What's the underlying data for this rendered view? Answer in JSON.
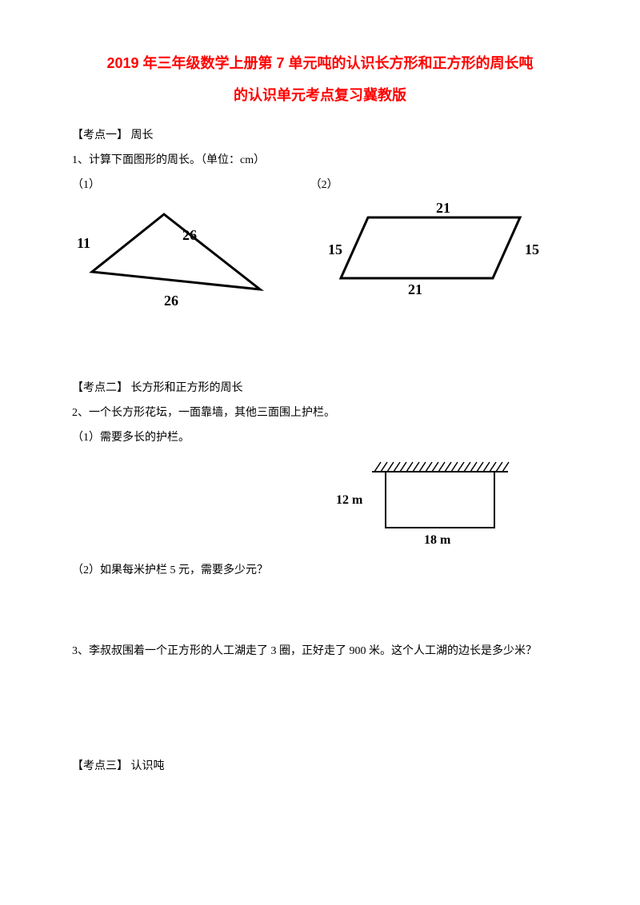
{
  "title_line1": "2019 年三年级数学上册第 7 单元吨的认识长方形和正方形的周长吨",
  "title_line2": "的认识单元考点复习冀教版",
  "kp1_heading": "【考点一】 周长",
  "q1": "1、计算下面图形的周长。（单位：cm）",
  "q1_sub1": "（1）",
  "q1_sub2": "（2）",
  "triangle": {
    "left_label": "11",
    "top_label": "26",
    "bottom_label": "26",
    "stroke": "#000000",
    "stroke_width": 3
  },
  "parallelogram": {
    "top_label": "21",
    "left_label": "15",
    "right_label": "15",
    "bottom_label": "21",
    "stroke": "#000000",
    "stroke_width": 3
  },
  "kp2_heading": "【考点二】 长方形和正方形的周长",
  "q2": "2、一个长方形花坛，一面靠墙，其他三面围上护栏。",
  "q2_sub1": "（1）需要多长的护栏。",
  "q2_sub2": "（2）如果每米护栏 5 元，需要多少元？",
  "wall_rect": {
    "left_label": "12 m",
    "bottom_label": "18 m",
    "stroke": "#000000",
    "stroke_width": 2
  },
  "q3": "3、李叔叔围着一个正方形的人工湖走了 3 圈，正好走了 900 米。这个人工湖的边长是多少米？",
  "kp3_heading": "【考点三】 认识吨"
}
